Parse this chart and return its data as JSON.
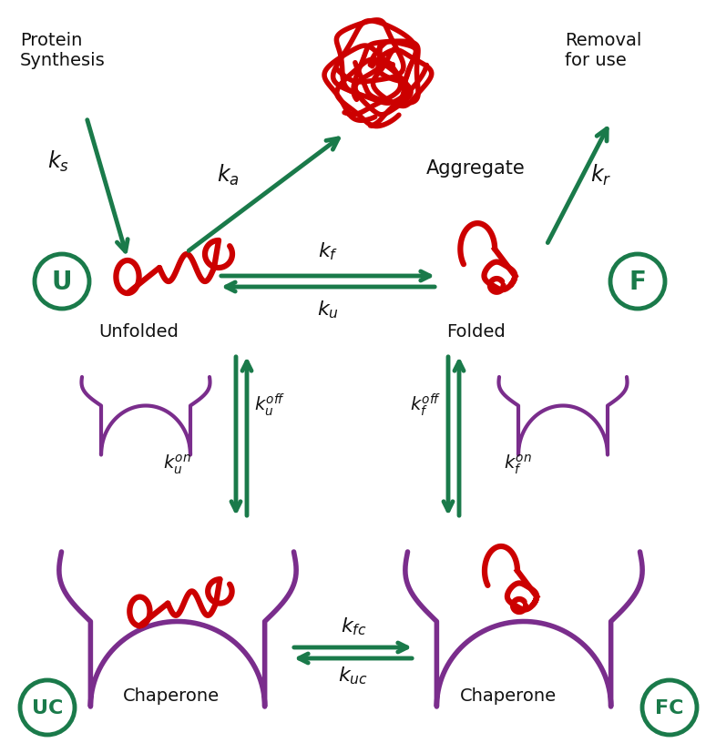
{
  "bg_color": "#ffffff",
  "dark_green": "#1a7a4a",
  "red": "#cc0000",
  "purple": "#7a2d8c",
  "black": "#111111",
  "labels": {
    "protein_synthesis": "Protein\nSynthesis",
    "aggregate": "Aggregate",
    "removal": "Removal\nfor use",
    "unfolded": "Unfolded",
    "folded": "Folded",
    "chaperone_uc": "Chaperone",
    "chaperone_fc": "Chaperone",
    "UC": "UC",
    "FC": "FC",
    "U": "U",
    "F": "F"
  }
}
